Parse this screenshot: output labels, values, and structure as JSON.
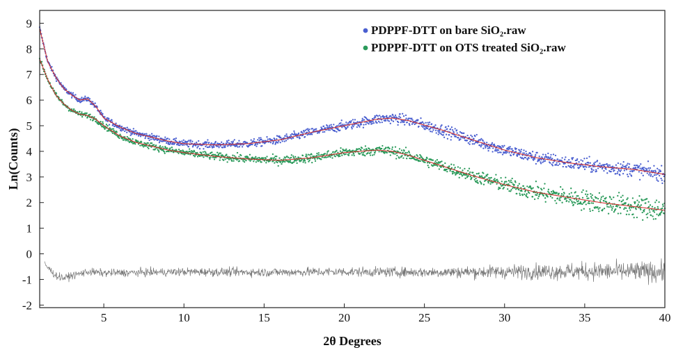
{
  "chart_data": {
    "type": "scatter",
    "title": "",
    "xlabel": "2θ Degrees",
    "ylabel": "Ln(Counts)",
    "xlim": [
      1,
      40
    ],
    "ylim": [
      -2.1,
      9.5
    ],
    "x_ticks": [
      "5",
      "10",
      "15",
      "20",
      "25",
      "30",
      "35",
      "40"
    ],
    "x_tick_values": [
      5,
      10,
      15,
      20,
      25,
      30,
      35,
      40
    ],
    "y_ticks": [
      "9",
      "8",
      "7",
      "6",
      "5",
      "4",
      "3",
      "2",
      "1",
      "0",
      "-1",
      "-2"
    ],
    "y_tick_values": [
      9,
      8,
      7,
      6,
      5,
      4,
      3,
      2,
      1,
      0,
      -1,
      -2
    ],
    "grid": false,
    "legend_position": "top-right",
    "series": [
      {
        "name": "PDPPF-DTT on bare SiO₂.raw",
        "color": "#4a5fd0",
        "fit_color": "#d03030",
        "x": [
          1,
          1.5,
          2,
          2.5,
          3,
          3.5,
          4,
          4.5,
          5,
          6,
          7,
          8,
          9,
          10,
          12,
          14,
          16,
          18,
          20,
          22,
          23,
          24,
          26,
          28,
          30,
          32,
          34,
          36,
          38,
          40
        ],
        "y": [
          8.8,
          7.5,
          6.9,
          6.45,
          6.2,
          6.0,
          6.05,
          5.75,
          5.3,
          4.95,
          4.7,
          4.55,
          4.4,
          4.3,
          4.25,
          4.3,
          4.45,
          4.75,
          5.0,
          5.25,
          5.3,
          5.2,
          4.85,
          4.45,
          4.05,
          3.75,
          3.55,
          3.4,
          3.3,
          3.1
        ]
      },
      {
        "name": "PDPPF-DTT on OTS treated SiO₂.raw",
        "color": "#2a9a5a",
        "fit_color": "#d03030",
        "x": [
          1,
          1.5,
          2,
          2.5,
          3,
          3.5,
          4,
          4.5,
          5,
          6,
          7,
          8,
          9,
          10,
          12,
          14,
          16,
          18,
          20,
          22,
          23,
          24,
          26,
          28,
          30,
          32,
          34,
          36,
          38,
          40
        ],
        "y": [
          7.6,
          6.8,
          6.2,
          5.85,
          5.6,
          5.45,
          5.4,
          5.25,
          5.0,
          4.6,
          4.35,
          4.2,
          4.05,
          3.95,
          3.8,
          3.7,
          3.65,
          3.75,
          3.95,
          4.05,
          4.0,
          3.85,
          3.45,
          3.05,
          2.7,
          2.4,
          2.2,
          2.0,
          1.85,
          1.7
        ]
      },
      {
        "name": "",
        "color": "#777777",
        "x": [
          1.3,
          2,
          2.5,
          3,
          4,
          5,
          10,
          15,
          20,
          25,
          30,
          35,
          40
        ],
        "y": [
          -0.4,
          -0.85,
          -0.95,
          -0.85,
          -0.7,
          -0.75,
          -0.7,
          -0.72,
          -0.7,
          -0.72,
          -0.7,
          -0.68,
          -0.7
        ]
      }
    ]
  }
}
